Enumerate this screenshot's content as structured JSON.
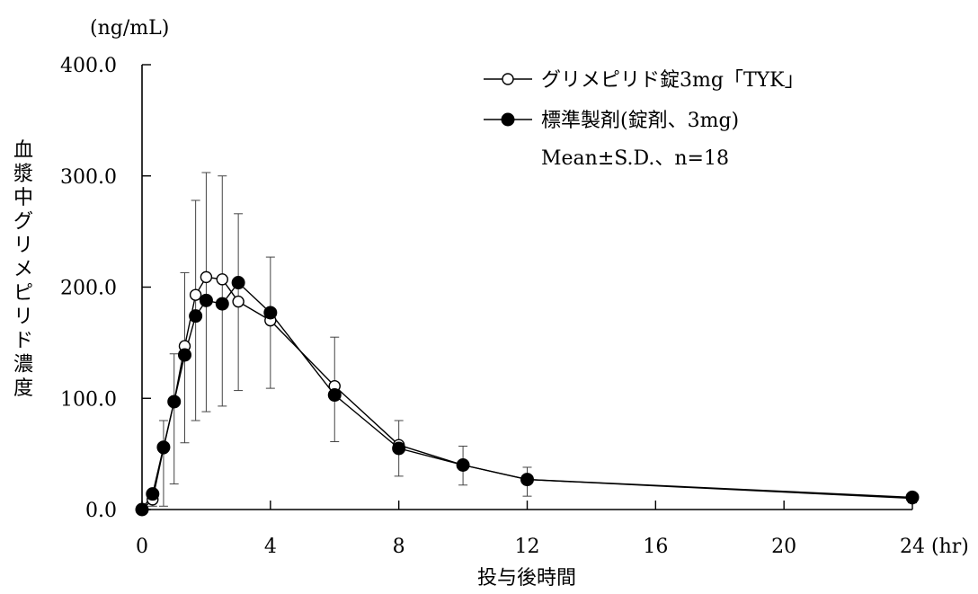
{
  "chart_data": {
    "type": "line",
    "ylabel": "血漿中グリメピリド濃度",
    "yunit": "(ng/mL)",
    "xlabel": "投与後時間",
    "xunit": "(hr)",
    "ylim": [
      0,
      400
    ],
    "xlim": [
      0,
      24
    ],
    "yticks": [
      "0.0",
      "100.0",
      "200.0",
      "300.0",
      "400.0"
    ],
    "yticks_values": [
      0,
      100,
      200,
      300,
      400
    ],
    "xticks": [
      "0",
      "4",
      "8",
      "12",
      "16",
      "20",
      "24"
    ],
    "xticks_values": [
      0,
      4,
      8,
      12,
      16,
      20,
      24
    ],
    "grid": false,
    "legend_position": "top-right",
    "note": "Mean±S.D.、n=18",
    "series": [
      {
        "name": "グリメピリド錠3mg「TYK」",
        "marker": "open-circle",
        "x": [
          0,
          0.33,
          0.67,
          1,
          1.33,
          1.67,
          2,
          2.5,
          3,
          4,
          6,
          8,
          10,
          12,
          24
        ],
        "y": [
          0,
          9,
          55,
          97,
          147,
          193,
          209,
          207,
          187,
          170,
          111,
          58,
          40,
          27,
          10
        ]
      },
      {
        "name": "標準製剤(錠剤、3mg)",
        "marker": "filled-circle",
        "x": [
          0,
          0.33,
          0.67,
          1,
          1.33,
          1.67,
          2,
          2.5,
          3,
          4,
          6,
          8,
          10,
          12,
          24
        ],
        "y": [
          0,
          14,
          56,
          97,
          139,
          174,
          188,
          185,
          204,
          177,
          103,
          55,
          40,
          27,
          11
        ],
        "error_upper": [
          0,
          10,
          80,
          140,
          213,
          278,
          303,
          300,
          266,
          227,
          155,
          80,
          57,
          38,
          15
        ],
        "error_lower": [
          0,
          3,
          3,
          23,
          60,
          80,
          88,
          93,
          107,
          109,
          61,
          30,
          22,
          12,
          6
        ]
      }
    ]
  }
}
